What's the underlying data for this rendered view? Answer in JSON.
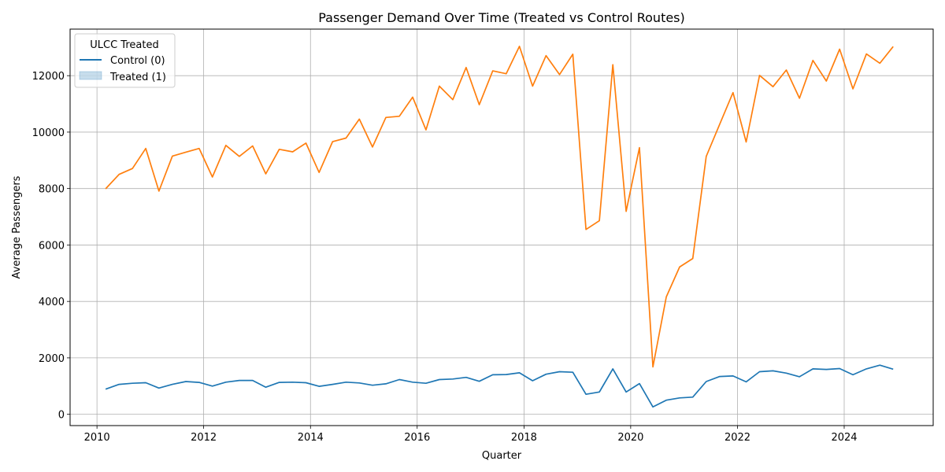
{
  "chart_data": {
    "type": "line",
    "title": "Passenger Demand Over Time (Treated vs Control Routes)",
    "xlabel": "Quarter",
    "ylabel": "Average Passengers",
    "xlim": [
      "2009-07-01",
      "2025-09-01"
    ],
    "ylim": [
      -400,
      13650
    ],
    "x_ticks": [
      "2010",
      "2012",
      "2014",
      "2016",
      "2018",
      "2020",
      "2022",
      "2024"
    ],
    "y_ticks": [
      0,
      2000,
      4000,
      6000,
      8000,
      10000,
      12000
    ],
    "grid": true,
    "legend": {
      "title": "ULCC Treated",
      "location": "top-left",
      "entries": [
        "Control (0)",
        "Treated (1)"
      ]
    },
    "x": [
      "2010-03-01",
      "2010-06-01",
      "2010-09-01",
      "2010-12-01",
      "2011-03-01",
      "2011-06-01",
      "2011-09-01",
      "2011-12-01",
      "2012-03-01",
      "2012-06-01",
      "2012-09-01",
      "2012-12-01",
      "2013-03-01",
      "2013-06-01",
      "2013-09-01",
      "2013-12-01",
      "2014-03-01",
      "2014-06-01",
      "2014-09-01",
      "2014-12-01",
      "2015-03-01",
      "2015-06-01",
      "2015-09-01",
      "2015-12-01",
      "2016-03-01",
      "2016-06-01",
      "2016-09-01",
      "2016-12-01",
      "2017-03-01",
      "2017-06-01",
      "2017-09-01",
      "2017-12-01",
      "2018-03-01",
      "2018-06-01",
      "2018-09-01",
      "2018-12-01",
      "2019-03-01",
      "2019-06-01",
      "2019-09-01",
      "2019-12-01",
      "2020-03-01",
      "2020-06-01",
      "2020-09-01",
      "2020-12-01",
      "2021-03-01",
      "2021-06-01",
      "2021-09-01",
      "2021-12-01",
      "2022-03-01",
      "2022-06-01",
      "2022-09-01",
      "2022-12-01",
      "2023-03-01",
      "2023-06-01",
      "2023-09-01",
      "2023-12-01",
      "2024-03-01",
      "2024-06-01",
      "2024-09-01",
      "2024-12-01"
    ],
    "series": [
      {
        "name": "Control (0)",
        "color": "#1f77b4",
        "values": [
          890,
          1060,
          1100,
          1120,
          930,
          1060,
          1160,
          1130,
          1000,
          1140,
          1200,
          1200,
          960,
          1130,
          1140,
          1120,
          990,
          1060,
          1140,
          1110,
          1030,
          1080,
          1230,
          1140,
          1100,
          1230,
          1250,
          1310,
          1170,
          1400,
          1410,
          1470,
          1190,
          1420,
          1510,
          1490,
          710,
          790,
          1610,
          790,
          1090,
          260,
          500,
          580,
          610,
          1160,
          1340,
          1360,
          1150,
          1510,
          1540,
          1460,
          1330,
          1610,
          1590,
          1620,
          1400,
          1610,
          1740,
          1600
        ]
      },
      {
        "name": "",
        "color": "#ff7f0e",
        "values": [
          7990,
          8500,
          8710,
          9420,
          7910,
          9150,
          9290,
          9420,
          8410,
          9530,
          9140,
          9510,
          8520,
          9390,
          9300,
          9610,
          8570,
          9660,
          9790,
          10460,
          9470,
          10520,
          10560,
          11240,
          10080,
          11630,
          11150,
          12290,
          10970,
          12170,
          12070,
          13040,
          11630,
          12710,
          12040,
          12760,
          6550,
          6860,
          12390,
          7190,
          9450,
          1680,
          4160,
          5220,
          5520,
          9140,
          10280,
          11400,
          9650,
          12010,
          11610,
          12200,
          11200,
          12540,
          11810,
          12940,
          11530,
          12770,
          12440,
          13030
        ]
      }
    ]
  }
}
